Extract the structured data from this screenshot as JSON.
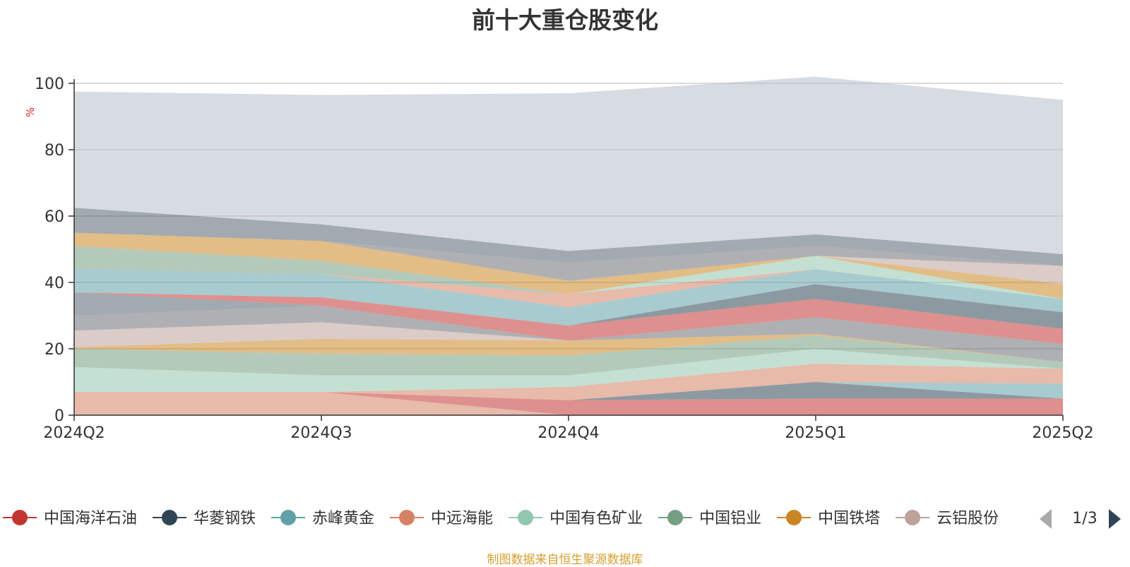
{
  "chart_data": {
    "type": "area",
    "title": "前十大重仓股变化",
    "ylabel": "%",
    "categories": [
      "2024Q2",
      "2024Q3",
      "2024Q4",
      "2025Q1",
      "2025Q2"
    ],
    "ylim": [
      0,
      100
    ],
    "yticks": [
      0,
      20,
      40,
      60,
      80,
      100
    ],
    "grid": true,
    "legend_position": "bottom",
    "legend_page": "1/3",
    "legend": [
      {
        "name": "中国海洋石油",
        "color": "#c23531"
      },
      {
        "name": "华菱钢铁",
        "color": "#2f4554"
      },
      {
        "name": "赤峰黄金",
        "color": "#61a0a8"
      },
      {
        "name": "中远海能",
        "color": "#d48265"
      },
      {
        "name": "中国有色矿业",
        "color": "#91c7ae"
      },
      {
        "name": "中国铝业",
        "color": "#749f83"
      },
      {
        "name": "中国铁塔",
        "color": "#ca8622"
      },
      {
        "name": "云铝股份",
        "color": "#bda29a"
      }
    ],
    "bands": [
      {
        "color": "#d48265",
        "values": [
          7,
          7,
          0,
          0,
          0
        ]
      },
      {
        "color": "#c23531",
        "values": [
          0,
          0,
          4.5,
          5,
          5
        ]
      },
      {
        "color": "#2f4554",
        "values": [
          0,
          0,
          0,
          5,
          0
        ]
      },
      {
        "color": "#61a0a8",
        "values": [
          0,
          0,
          0,
          0,
          4.5
        ]
      },
      {
        "color": "#d48265",
        "values": [
          0,
          0,
          4,
          5.5,
          4.5
        ]
      },
      {
        "color": "#91c7ae",
        "values": [
          7.5,
          5,
          3.5,
          4.5,
          0
        ]
      },
      {
        "color": "#749f83",
        "values": [
          5.5,
          6.5,
          6,
          4,
          2
        ]
      },
      {
        "color": "#ca8622",
        "values": [
          0.5,
          4.5,
          4.5,
          0.5,
          0
        ]
      },
      {
        "color": "#bda29a",
        "values": [
          5,
          5,
          0,
          0,
          0
        ]
      },
      {
        "color": "#6e7074",
        "values": [
          4.5,
          5,
          0,
          5,
          5.5
        ]
      },
      {
        "color": "#546570",
        "values": [
          7,
          0,
          0,
          0,
          0
        ]
      },
      {
        "color": "#c23531",
        "values": [
          0,
          2.5,
          4.5,
          5.5,
          4.5
        ]
      },
      {
        "color": "#2f4554",
        "values": [
          0,
          0,
          0,
          4.5,
          5
        ]
      },
      {
        "color": "#61a0a8",
        "values": [
          7,
          7,
          5.5,
          4.5,
          4
        ]
      },
      {
        "color": "#d48265",
        "values": [
          0,
          0,
          4,
          0,
          0
        ]
      },
      {
        "color": "#91c7ae",
        "values": [
          0,
          0,
          0,
          4,
          0
        ]
      },
      {
        "color": "#749f83",
        "values": [
          7,
          4,
          0,
          0,
          0
        ]
      },
      {
        "color": "#ca8622",
        "values": [
          4,
          6,
          4,
          0,
          4.5
        ]
      },
      {
        "color": "#bda29a",
        "values": [
          0,
          0,
          0,
          0,
          5.5
        ]
      },
      {
        "color": "#6e7074",
        "values": [
          0,
          0,
          5.5,
          3,
          0
        ]
      },
      {
        "color": "#546570",
        "values": [
          7.5,
          5,
          3.5,
          3.5,
          3.5
        ]
      },
      {
        "color": "#b6bfcc",
        "values": [
          35,
          39,
          47.5,
          47.5,
          46.5
        ]
      }
    ]
  },
  "source_note": "制图数据来自恒生聚源数据库"
}
